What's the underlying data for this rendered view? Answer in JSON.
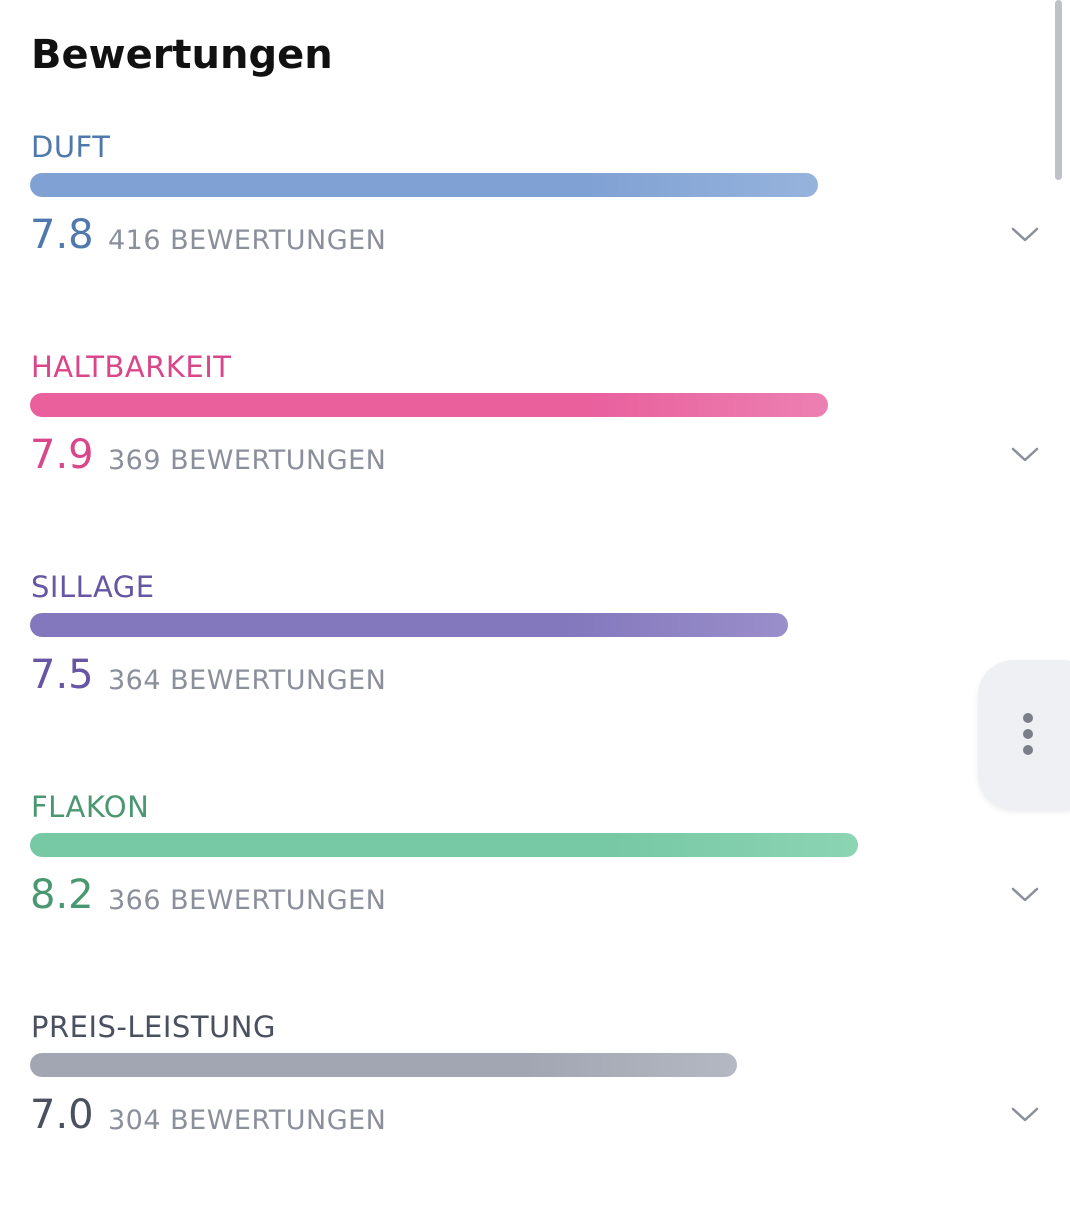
{
  "title": "Bewertungen",
  "ratings": [
    {
      "label": "DUFT",
      "score": "7.8",
      "count": "416 BEWERTUNGEN",
      "text_color": "#4f78ad",
      "bar_color": "#7fa1d3",
      "bar_color_end": "#96b3dc"
    },
    {
      "label": "HALTBARKEIT",
      "score": "7.9",
      "count": "369 BEWERTUNGEN",
      "text_color": "#d9478a",
      "bar_color": "#e9609d",
      "bar_color_end": "#ec80b2"
    },
    {
      "label": "SILLAGE",
      "score": "7.5",
      "count": "364 BEWERTUNGEN",
      "text_color": "#6656a3",
      "bar_color": "#8377bd",
      "bar_color_end": "#9a8fca"
    },
    {
      "label": "FLAKON",
      "score": "8.2",
      "count": "366 BEWERTUNGEN",
      "text_color": "#4a9872",
      "bar_color": "#77c8a5",
      "bar_color_end": "#8cd4b3"
    },
    {
      "label": "PREIS-LEISTUNG",
      "score": "7.0",
      "count": "304 BEWERTUNGEN",
      "text_color": "#4a5060",
      "bar_color": "#a2a6b2",
      "bar_color_end": "#b4b8c2"
    }
  ]
}
